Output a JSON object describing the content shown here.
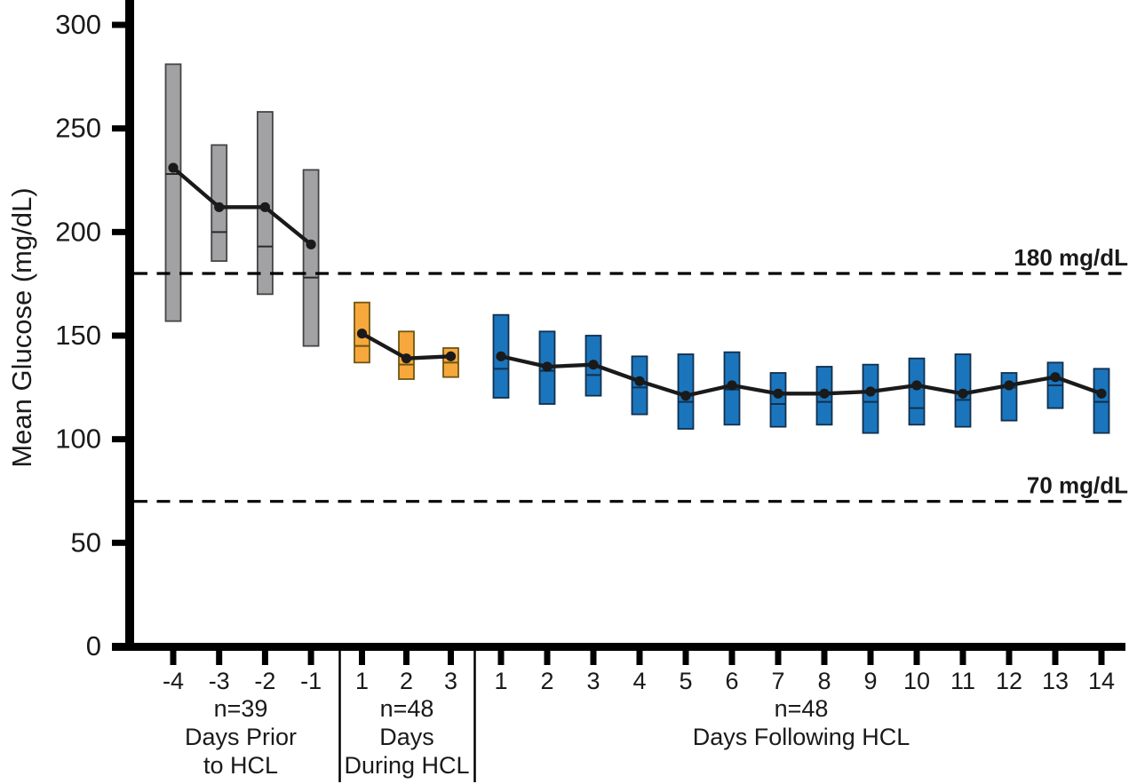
{
  "chart_data": {
    "type": "bar",
    "subtype": "range-bars-with-mean-line",
    "title": "",
    "ylabel": "Mean Glucose (mg/dL)",
    "yticks": [
      0,
      50,
      100,
      150,
      200,
      250,
      300
    ],
    "ylim": [
      0,
      313
    ],
    "grid": false,
    "legend": "none",
    "reference_lines": [
      {
        "value": 180,
        "label": "180 mg/dL"
      },
      {
        "value": 70,
        "label": "70 mg/dL"
      }
    ],
    "groups": [
      {
        "id": "prior",
        "n_label": "n=39",
        "label_lines": [
          "Days Prior",
          "to HCL"
        ],
        "bar_color": "#a2a2a4",
        "bar_edge_color": "#454547",
        "median_color": "#2a2a2a",
        "days": [
          {
            "day": "-4",
            "bar_low": 157,
            "bar_high": 281,
            "median": 228,
            "mean": 231
          },
          {
            "day": "-3",
            "bar_low": 186,
            "bar_high": 242,
            "median": 200,
            "mean": 212
          },
          {
            "day": "-2",
            "bar_low": 170,
            "bar_high": 258,
            "median": 193,
            "mean": 212
          },
          {
            "day": "-1",
            "bar_low": 145,
            "bar_high": 230,
            "median": 178,
            "mean": 194
          }
        ]
      },
      {
        "id": "during",
        "n_label": "n=48",
        "label_lines": [
          "Days",
          "During HCL"
        ],
        "bar_color": "#f6a83d",
        "bar_edge_color": "#6f5510",
        "median_color": "#6f5510",
        "days": [
          {
            "day": "1",
            "bar_low": 137,
            "bar_high": 166,
            "median": 145,
            "mean": 151
          },
          {
            "day": "2",
            "bar_low": 129,
            "bar_high": 152,
            "median": 136,
            "mean": 139
          },
          {
            "day": "3",
            "bar_low": 130,
            "bar_high": 144,
            "median": 137,
            "mean": 140
          }
        ]
      },
      {
        "id": "following",
        "n_label": "n=48",
        "label_lines": [
          "Days Following HCL"
        ],
        "bar_color": "#1b75bc",
        "bar_edge_color": "#10304f",
        "median_color": "#10304f",
        "days": [
          {
            "day": "1",
            "bar_low": 120,
            "bar_high": 160,
            "median": 134,
            "mean": 140
          },
          {
            "day": "2",
            "bar_low": 117,
            "bar_high": 152,
            "median": 133,
            "mean": 135
          },
          {
            "day": "3",
            "bar_low": 121,
            "bar_high": 150,
            "median": 131,
            "mean": 136
          },
          {
            "day": "4",
            "bar_low": 112,
            "bar_high": 140,
            "median": 125,
            "mean": 128
          },
          {
            "day": "5",
            "bar_low": 105,
            "bar_high": 141,
            "median": 118,
            "mean": 121
          },
          {
            "day": "6",
            "bar_low": 107,
            "bar_high": 142,
            "median": 124,
            "mean": 126
          },
          {
            "day": "7",
            "bar_low": 106,
            "bar_high": 132,
            "median": 117,
            "mean": 122
          },
          {
            "day": "8",
            "bar_low": 107,
            "bar_high": 135,
            "median": 118,
            "mean": 122
          },
          {
            "day": "9",
            "bar_low": 103,
            "bar_high": 136,
            "median": 118,
            "mean": 123
          },
          {
            "day": "10",
            "bar_low": 107,
            "bar_high": 139,
            "median": 115,
            "mean": 126
          },
          {
            "day": "11",
            "bar_low": 106,
            "bar_high": 141,
            "median": 119,
            "mean": 122
          },
          {
            "day": "12",
            "bar_low": 109,
            "bar_high": 132,
            "median": 125,
            "mean": 126
          },
          {
            "day": "13",
            "bar_low": 115,
            "bar_high": 137,
            "median": 126,
            "mean": 130
          },
          {
            "day": "14",
            "bar_low": 103,
            "bar_high": 134,
            "median": 118,
            "mean": 122
          }
        ]
      }
    ],
    "mean_line_color": "#1a1a1a",
    "axis_color": "#000000",
    "text_color": "#1a1a1a"
  }
}
